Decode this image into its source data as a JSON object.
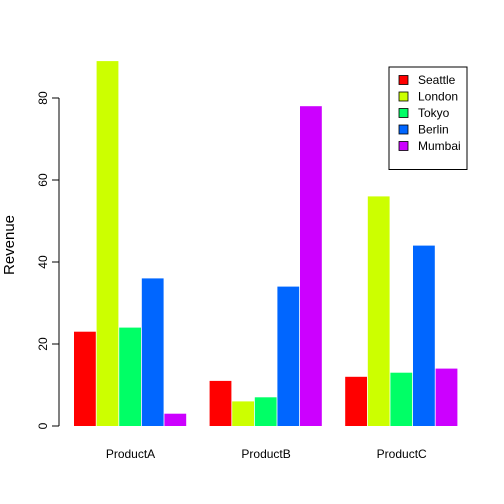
{
  "chart_data": {
    "type": "bar",
    "title": "",
    "xlabel": "",
    "ylabel": "Revenue",
    "ylim": [
      0,
      90
    ],
    "yticks": [
      0,
      20,
      40,
      60,
      80
    ],
    "grid": false,
    "legend_position": "top-right",
    "categories": [
      "ProductA",
      "ProductB",
      "ProductC"
    ],
    "series": [
      {
        "name": "Seattle",
        "color": "#FF0000",
        "values": [
          23,
          11,
          12
        ]
      },
      {
        "name": "London",
        "color": "#CCFF00",
        "values": [
          89,
          6,
          56
        ]
      },
      {
        "name": "Tokyo",
        "color": "#00FF66",
        "values": [
          24,
          7,
          13
        ]
      },
      {
        "name": "Berlin",
        "color": "#0066FF",
        "values": [
          36,
          34,
          44
        ]
      },
      {
        "name": "Mumbai",
        "color": "#CC00FF",
        "values": [
          3,
          78,
          14
        ]
      }
    ]
  }
}
